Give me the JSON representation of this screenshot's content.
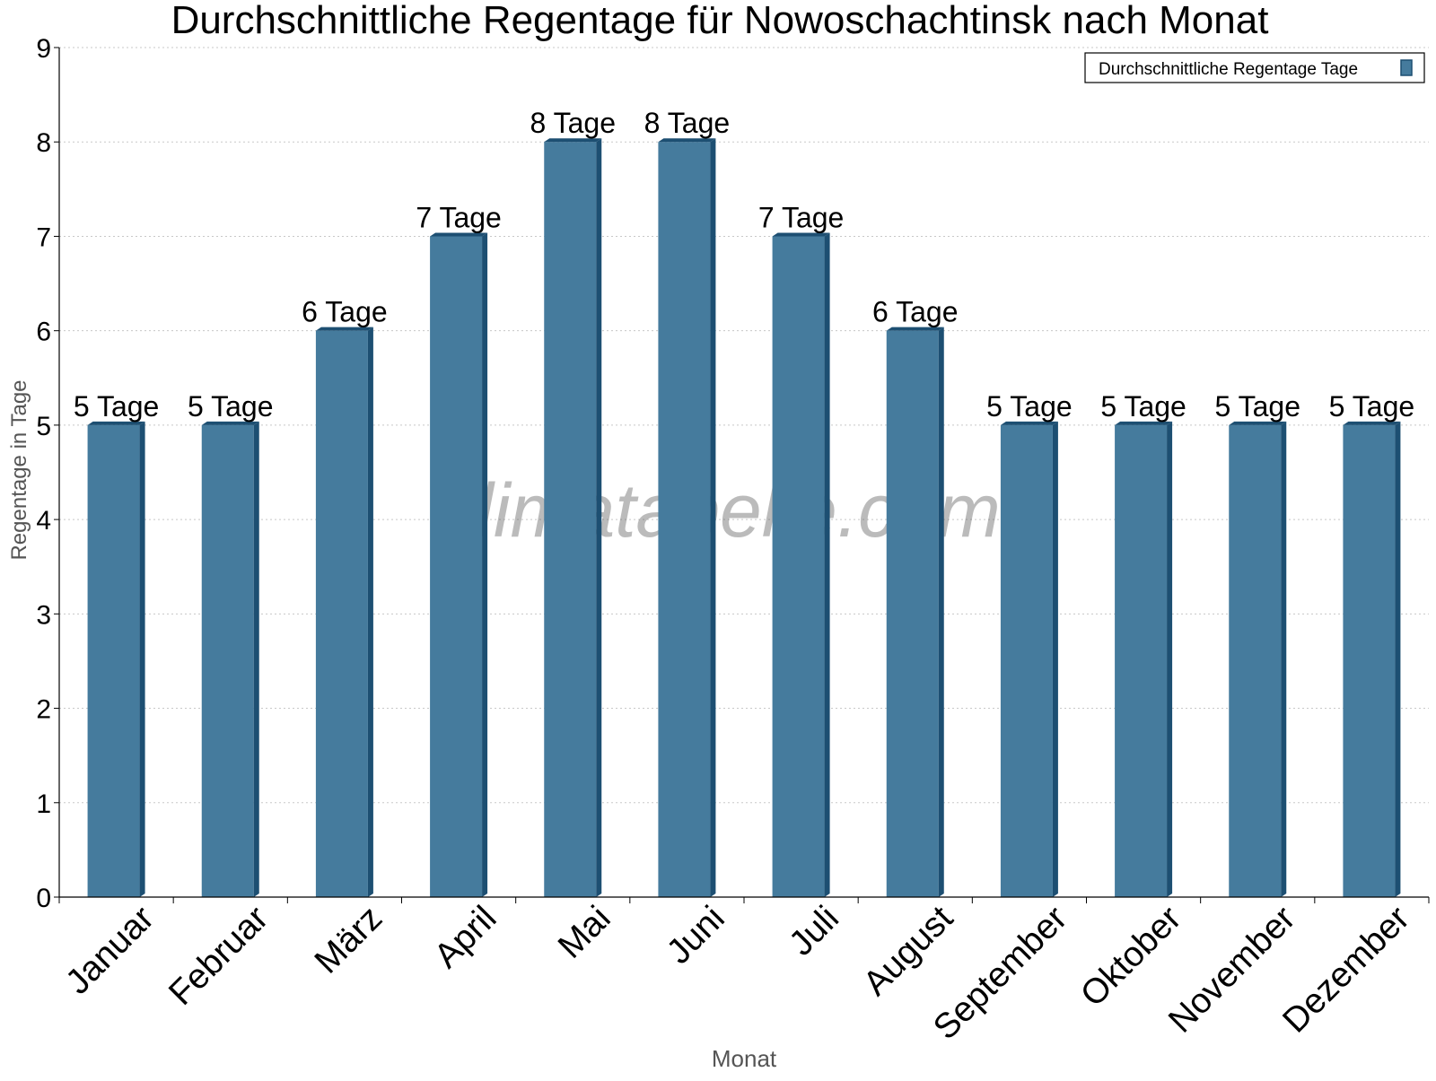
{
  "chart_data": {
    "type": "bar",
    "title": "Durchschnittliche Regentage für Nowoschachtinsk nach Monat",
    "xlabel": "Monat",
    "ylabel": "Regentage in Tage",
    "ylim": [
      0,
      9
    ],
    "yticks": [
      "0",
      "1",
      "2",
      "3",
      "4",
      "5",
      "6",
      "7",
      "8",
      "9"
    ],
    "grid": true,
    "legend_position": "top-right",
    "watermark": "klimatabelle.com",
    "categories": [
      "Januar",
      "Februar",
      "März",
      "April",
      "Mai",
      "Juni",
      "Juli",
      "August",
      "September",
      "Oktober",
      "November",
      "Dezember"
    ],
    "series": [
      {
        "name": "Durchschnittliche Regentage Tage",
        "values": [
          5,
          5,
          6,
          7,
          8,
          8,
          7,
          6,
          5,
          5,
          5,
          5
        ],
        "data_labels": [
          "5 Tage",
          "5 Tage",
          "6 Tage",
          "7 Tage",
          "8 Tage",
          "8 Tage",
          "7 Tage",
          "6 Tage",
          "5 Tage",
          "5 Tage",
          "5 Tage",
          "5 Tage"
        ],
        "color": "#457b9d",
        "side_color": "#1d4f72"
      }
    ]
  }
}
